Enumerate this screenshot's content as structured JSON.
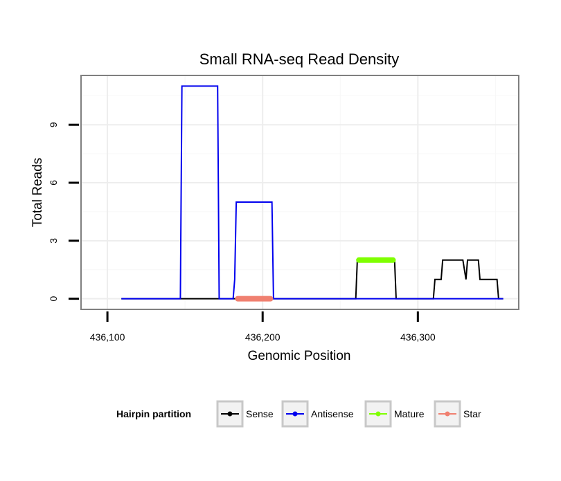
{
  "chart_data": {
    "type": "line",
    "title": "Small RNA-seq Read Density",
    "xlabel": "Genomic Position",
    "ylabel": "Total Reads",
    "xlim": [
      436083,
      436365
    ],
    "ylim": [
      -0.55,
      11.55
    ],
    "x_ticks": [
      436100,
      436200,
      436300
    ],
    "x_tick_labels": [
      "436,100",
      "436,200",
      "436,300"
    ],
    "y_ticks": [
      0,
      3,
      6,
      9
    ],
    "y_tick_labels": [
      "0",
      "3",
      "6",
      "9"
    ],
    "grid": true,
    "legend_position": "bottom",
    "legend_title": "Hairpin partition",
    "series": [
      {
        "name": "Sense",
        "color": "#000000",
        "width": 2,
        "points": [
          [
            436109,
            0
          ],
          [
            436260,
            0
          ],
          [
            436261,
            2
          ],
          [
            436285,
            2
          ],
          [
            436286,
            0
          ],
          [
            436310,
            0
          ],
          [
            436311,
            1
          ],
          [
            436315,
            1
          ],
          [
            436316,
            2
          ],
          [
            436329,
            2
          ],
          [
            436331,
            1
          ],
          [
            436332,
            2
          ],
          [
            436339,
            2
          ],
          [
            436340,
            1
          ],
          [
            436351,
            1
          ],
          [
            436352,
            0
          ],
          [
            436355,
            0
          ]
        ]
      },
      {
        "name": "Antisense",
        "color": "#0000ee",
        "width": 2,
        "points": [
          [
            436109,
            0
          ],
          [
            436147,
            0
          ],
          [
            436148,
            11
          ],
          [
            436171,
            11
          ],
          [
            436172,
            0
          ],
          [
            436181,
            0
          ],
          [
            436182,
            1
          ],
          [
            436183,
            5
          ],
          [
            436206,
            5
          ],
          [
            436207,
            0
          ],
          [
            436355,
            0
          ]
        ]
      },
      {
        "name": "Mature",
        "color": "#7fff00",
        "width": 8,
        "points": [
          [
            436262,
            2
          ],
          [
            436284,
            2
          ]
        ]
      },
      {
        "name": "Star",
        "color": "#f08070",
        "width": 8,
        "points": [
          [
            436184,
            0
          ],
          [
            436205,
            0
          ]
        ]
      }
    ]
  }
}
